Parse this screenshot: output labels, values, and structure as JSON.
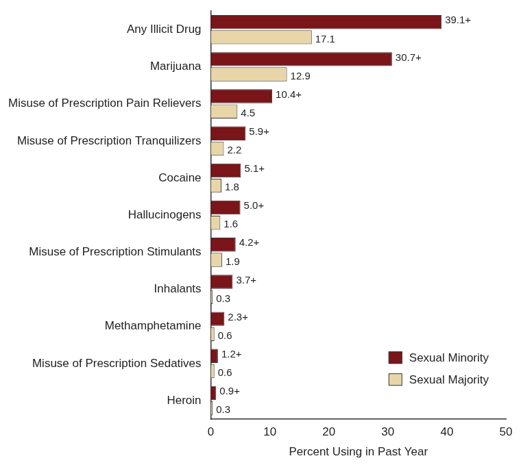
{
  "chart_data": {
    "type": "bar",
    "orientation": "horizontal",
    "x_label": "Percent Using in Past Year",
    "categories": [
      "Any Illicit Drug",
      "Marijuana",
      "Misuse of Prescription Pain Relievers",
      "Misuse of Prescription Tranquilizers",
      "Cocaine",
      "Hallucinogens",
      "Misuse of Prescription Stimulants",
      "Inhalants",
      "Methamphetamine",
      "Misuse of Prescription Sedatives",
      "Heroin"
    ],
    "series": [
      {
        "name": "Sexual Minority",
        "color": "#7a1519",
        "values": [
          39.1,
          30.7,
          10.4,
          5.9,
          5.1,
          5.0,
          4.2,
          3.7,
          2.3,
          1.2,
          0.9
        ],
        "value_labels": [
          "39.1+",
          "30.7+",
          "10.4+",
          "5.9+",
          "5.1+",
          "5.0+",
          "4.2+",
          "3.7+",
          "2.3+",
          "1.2+",
          "0.9+"
        ]
      },
      {
        "name": "Sexual Majority",
        "color": "#e8d6a8",
        "values": [
          17.1,
          12.9,
          4.5,
          2.2,
          1.8,
          1.6,
          1.9,
          0.3,
          0.6,
          0.6,
          0.3
        ],
        "value_labels": [
          "17.1",
          "12.9",
          "4.5",
          "2.2",
          "1.8",
          "1.6",
          "1.9",
          "0.3",
          "0.6",
          "0.6",
          "0.3"
        ]
      }
    ],
    "xlim": [
      0,
      50
    ],
    "xticks": [
      0,
      10,
      20,
      30,
      40,
      50
    ],
    "grid": false,
    "legend": "lower right",
    "data_labels": true
  }
}
